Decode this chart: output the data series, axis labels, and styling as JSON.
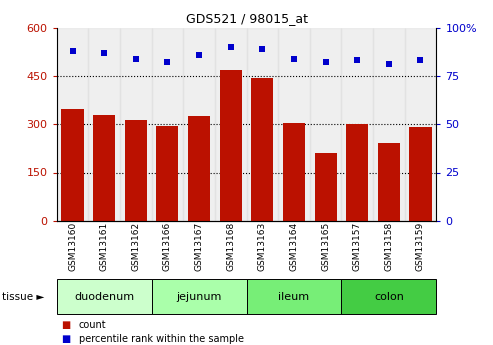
{
  "title": "GDS521 / 98015_at",
  "samples": [
    "GSM13160",
    "GSM13161",
    "GSM13162",
    "GSM13166",
    "GSM13167",
    "GSM13168",
    "GSM13163",
    "GSM13164",
    "GSM13165",
    "GSM13157",
    "GSM13158",
    "GSM13159"
  ],
  "counts": [
    348,
    330,
    312,
    295,
    325,
    468,
    442,
    305,
    210,
    300,
    242,
    292
  ],
  "percentiles": [
    88,
    87,
    84,
    82,
    86,
    90,
    89,
    84,
    82,
    83,
    81,
    83
  ],
  "tissue_groups": [
    {
      "name": "duodenum",
      "start": 0,
      "end": 3,
      "color": "#ccffcc"
    },
    {
      "name": "jejunum",
      "start": 3,
      "end": 6,
      "color": "#aaffaa"
    },
    {
      "name": "ileum",
      "start": 6,
      "end": 9,
      "color": "#77ee77"
    },
    {
      "name": "colon",
      "start": 9,
      "end": 12,
      "color": "#44cc44"
    }
  ],
  "bar_color": "#bb1100",
  "dot_color": "#0000cc",
  "left_ylim": [
    0,
    600
  ],
  "right_ylim": [
    0,
    100
  ],
  "left_yticks": [
    0,
    150,
    300,
    450,
    600
  ],
  "right_yticks": [
    0,
    25,
    50,
    75,
    100
  ],
  "right_yticklabels": [
    "0",
    "25",
    "50",
    "75",
    "100%"
  ],
  "grid_values": [
    150,
    300,
    450
  ],
  "col_bg_color": "#dddddd",
  "bar_width": 0.7
}
